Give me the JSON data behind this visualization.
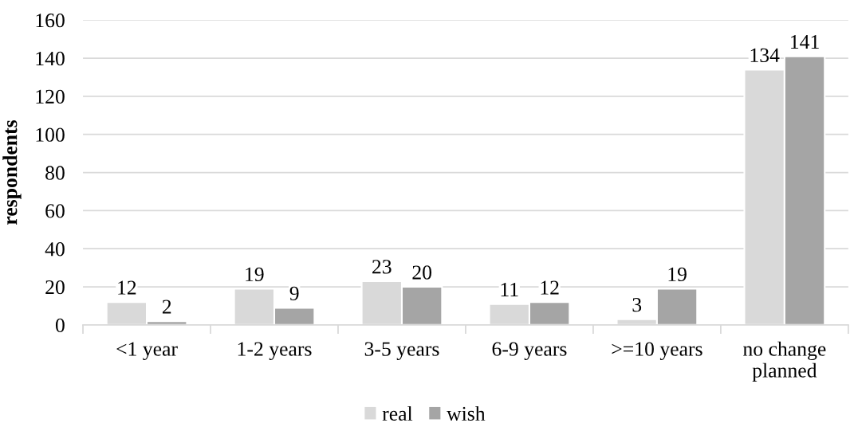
{
  "chart_data": {
    "type": "bar",
    "ylabel": "respondents",
    "categories": [
      "<1 year",
      "1-2 years",
      "3-5 years",
      "6-9 years",
      ">=10 years",
      "no change planned"
    ],
    "series": [
      {
        "name": "real",
        "color": "#d9d9d9",
        "values": [
          12,
          19,
          23,
          11,
          3,
          134
        ]
      },
      {
        "name": "wish",
        "color": "#a5a5a5",
        "values": [
          2,
          9,
          20,
          12,
          19,
          141
        ]
      }
    ],
    "ylim": [
      0,
      160
    ],
    "yticks": [
      0,
      20,
      40,
      60,
      80,
      100,
      120,
      140,
      160
    ],
    "grid": "y",
    "legend": "bottom",
    "data_labels": true
  }
}
